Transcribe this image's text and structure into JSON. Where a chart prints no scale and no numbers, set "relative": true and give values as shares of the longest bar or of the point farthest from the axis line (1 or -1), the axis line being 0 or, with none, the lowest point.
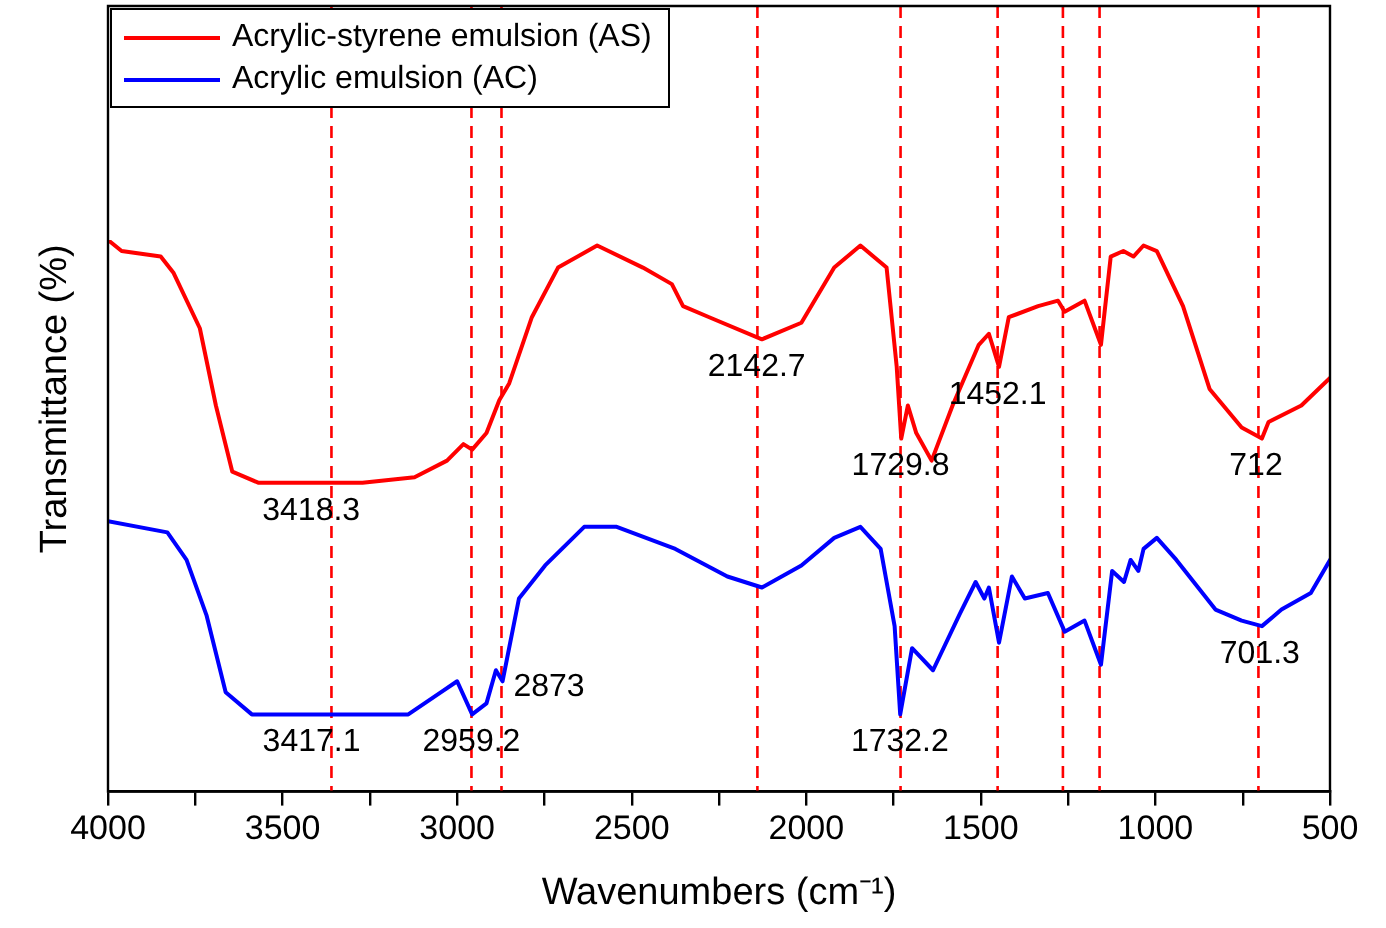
{
  "chart_data": {
    "type": "line",
    "relative": true,
    "xlabel": "Wavenumbers (cm⁻¹)",
    "ylabel": "Transmittance (%)",
    "xlim": [
      4000,
      500
    ],
    "xticks": [
      4000,
      {
        "value": 3750,
        "label": null
      },
      3500,
      {
        "value": 3250,
        "label": null
      },
      3000,
      {
        "value": 2750,
        "label": null
      },
      2500,
      {
        "value": 2250,
        "label": null
      },
      2000,
      {
        "value": 1750,
        "label": null
      },
      1500,
      {
        "value": 1250,
        "label": null
      },
      1000,
      {
        "value": 750,
        "label": null
      },
      500
    ],
    "legend": "top left",
    "grid": false,
    "marker": "none",
    "line_style": "solid",
    "series": [
      {
        "name": "Acrylic-styrene emulsion (AS)",
        "color": "#ff0000",
        "x": [
          4000,
          3961,
          3849,
          3812,
          3737,
          3691,
          3644,
          3570,
          3271,
          3122,
          3029,
          2982,
          2957,
          2916,
          2879,
          2851,
          2786,
          2711,
          2599,
          2468,
          2385,
          2353,
          2278,
          2127,
          2014,
          1920,
          1845,
          1770,
          1741,
          1728,
          1709,
          1685,
          1641,
          1581,
          1506,
          1477,
          1448,
          1420,
          1336,
          1279,
          1260,
          1203,
          1156,
          1128,
          1092,
          1063,
          1034,
          996,
          921,
          845,
          753,
          695,
          676,
          582,
          500
        ],
        "values": [
          1.0,
          0.98,
          0.97,
          0.94,
          0.84,
          0.7,
          0.58,
          0.56,
          0.56,
          0.57,
          0.6,
          0.63,
          0.62,
          0.65,
          0.71,
          0.74,
          0.86,
          0.95,
          0.99,
          0.95,
          0.92,
          0.88,
          0.86,
          0.82,
          0.85,
          0.95,
          0.99,
          0.95,
          0.77,
          0.64,
          0.7,
          0.65,
          0.6,
          0.7,
          0.81,
          0.83,
          0.77,
          0.86,
          0.88,
          0.89,
          0.87,
          0.89,
          0.81,
          0.97,
          0.98,
          0.97,
          0.99,
          0.98,
          0.88,
          0.73,
          0.66,
          0.64,
          0.67,
          0.7,
          0.75
        ]
      },
      {
        "name": "Acrylic emulsion (AC)",
        "color": "#0000ff",
        "x": [
          4000,
          3830,
          3775,
          3718,
          3663,
          3588,
          3271,
          3140,
          3047,
          3000,
          2957,
          2916,
          2889,
          2870,
          2823,
          2748,
          2636,
          2543,
          2375,
          2226,
          2127,
          2014,
          1920,
          1845,
          1787,
          1747,
          1731,
          1697,
          1637,
          1562,
          1515,
          1490,
          1477,
          1448,
          1411,
          1374,
          1308,
          1260,
          1203,
          1156,
          1124,
          1090,
          1071,
          1049,
          1034,
          996,
          940,
          828,
          753,
          695,
          639,
          555,
          500
        ],
        "values": [
          0.49,
          0.47,
          0.42,
          0.32,
          0.18,
          0.14,
          0.14,
          0.14,
          0.18,
          0.2,
          0.14,
          0.16,
          0.22,
          0.2,
          0.35,
          0.41,
          0.48,
          0.48,
          0.44,
          0.39,
          0.37,
          0.41,
          0.46,
          0.48,
          0.44,
          0.3,
          0.14,
          0.26,
          0.22,
          0.32,
          0.38,
          0.35,
          0.37,
          0.27,
          0.39,
          0.35,
          0.36,
          0.29,
          0.31,
          0.23,
          0.4,
          0.38,
          0.42,
          0.4,
          0.44,
          0.46,
          0.42,
          0.33,
          0.31,
          0.3,
          0.33,
          0.36,
          0.42
        ]
      }
    ],
    "ref_lines": [
      {
        "axis": "x",
        "value": 3360,
        "color": "#ff0000",
        "line_style": "dashed"
      },
      {
        "axis": "x",
        "value": 2959,
        "color": "#ff0000",
        "line_style": "dashed"
      },
      {
        "axis": "x",
        "value": 2873,
        "color": "#ff0000",
        "line_style": "dashed"
      },
      {
        "axis": "x",
        "value": 2140,
        "color": "#ff0000",
        "line_style": "dashed"
      },
      {
        "axis": "x",
        "value": 1730,
        "color": "#ff0000",
        "line_style": "dashed"
      },
      {
        "axis": "x",
        "value": 1452,
        "color": "#ff0000",
        "line_style": "dashed"
      },
      {
        "axis": "x",
        "value": 1265,
        "color": "#ff0000",
        "line_style": "dashed"
      },
      {
        "axis": "x",
        "value": 1160,
        "color": "#ff0000",
        "line_style": "dashed"
      },
      {
        "axis": "x",
        "value": 705,
        "color": "#ff0000",
        "line_style": "dashed"
      }
    ],
    "annotations": [
      {
        "text": "3418.3",
        "x": 3418,
        "y": 0.56
      },
      {
        "text": "2142.7",
        "x": 2142,
        "y": 0.82
      },
      {
        "text": "1729.8",
        "x": 1730,
        "y": 0.64
      },
      {
        "text": "1452.1",
        "x": 1452,
        "y": 0.77
      },
      {
        "text": "712",
        "x": 712,
        "y": 0.64
      },
      {
        "text": "3417.1",
        "x": 3417,
        "y": 0.14
      },
      {
        "text": "2959.2",
        "x": 2959,
        "y": 0.14
      },
      {
        "text": "2873",
        "x": 2873,
        "y": 0.2
      },
      {
        "text": "1732.2",
        "x": 1732,
        "y": 0.14
      },
      {
        "text": "701.3",
        "x": 701,
        "y": 0.3
      }
    ]
  }
}
